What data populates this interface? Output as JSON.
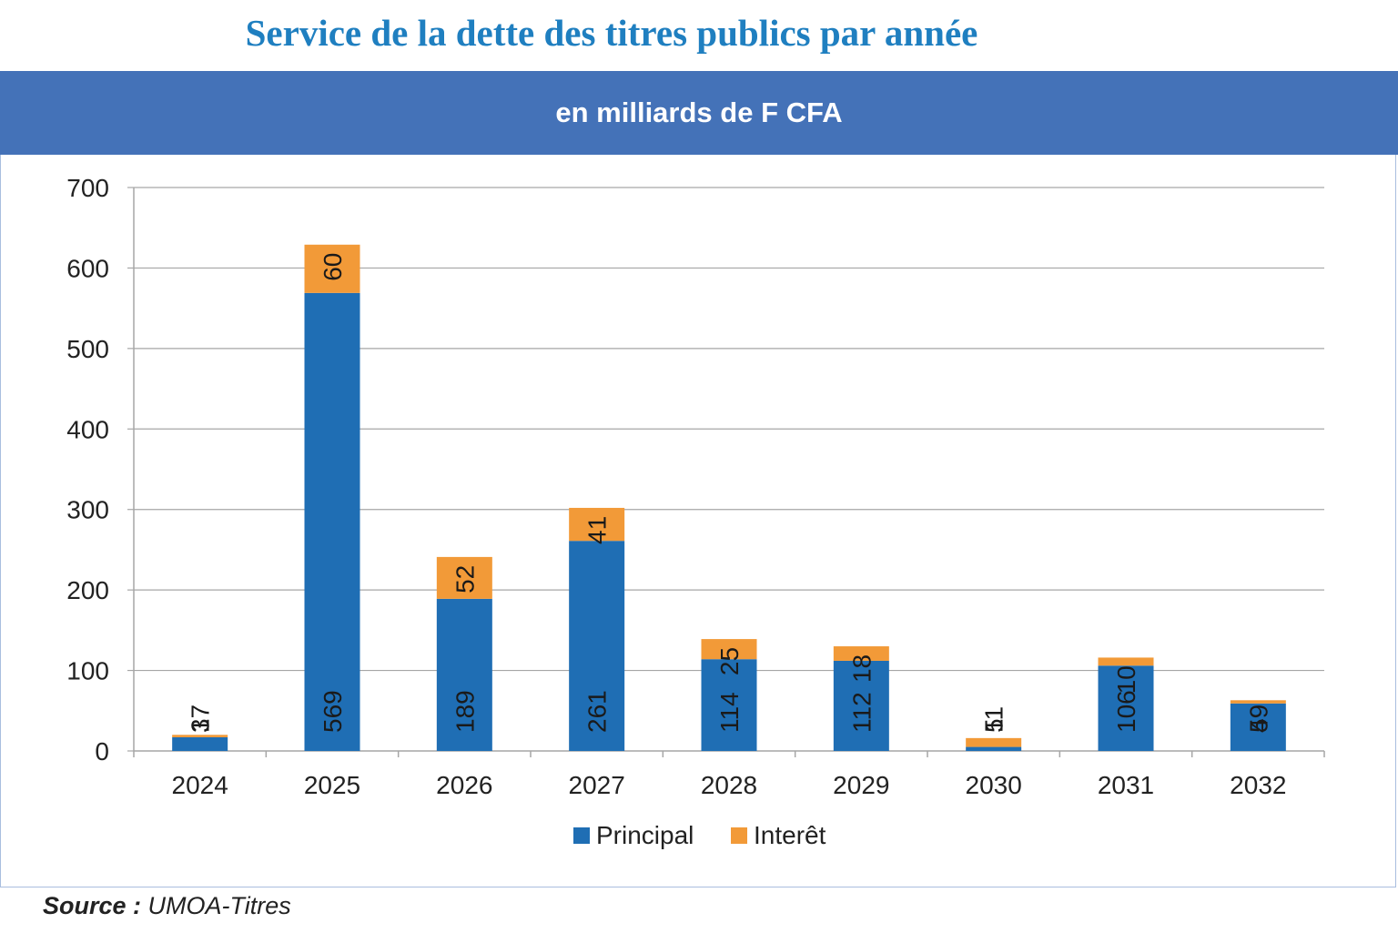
{
  "title": "Service de la dette des titres publics par année",
  "subtitle": "en milliards de F CFA",
  "source": {
    "label": "Source :",
    "value": "UMOA-Titres"
  },
  "colors": {
    "principal": "#1f6eb4",
    "interet": "#f29a38",
    "header_band": "#4472b8",
    "title": "#1f7fc0"
  },
  "chart_data": {
    "type": "bar",
    "stacked": true,
    "categories": [
      "2024",
      "2025",
      "2026",
      "2027",
      "2028",
      "2029",
      "2030",
      "2031",
      "2032"
    ],
    "series": [
      {
        "name": "Principal",
        "values": [
          17,
          569,
          189,
          261,
          114,
          112,
          5,
          106,
          59
        ],
        "labels": [
          "17",
          "569",
          "189",
          "261",
          "114",
          "112",
          "5",
          "106",
          "59"
        ]
      },
      {
        "name": "Interêt",
        "values": [
          3,
          60,
          52,
          41,
          25,
          18,
          11,
          10,
          4
        ],
        "labels": [
          "3",
          "60",
          "52",
          "41",
          "25",
          "18",
          "11",
          "10",
          "4"
        ]
      }
    ],
    "ylim": [
      0,
      700
    ],
    "yticks": [
      0,
      100,
      200,
      300,
      400,
      500,
      600,
      700
    ],
    "grid": true,
    "legend": "bottom"
  }
}
